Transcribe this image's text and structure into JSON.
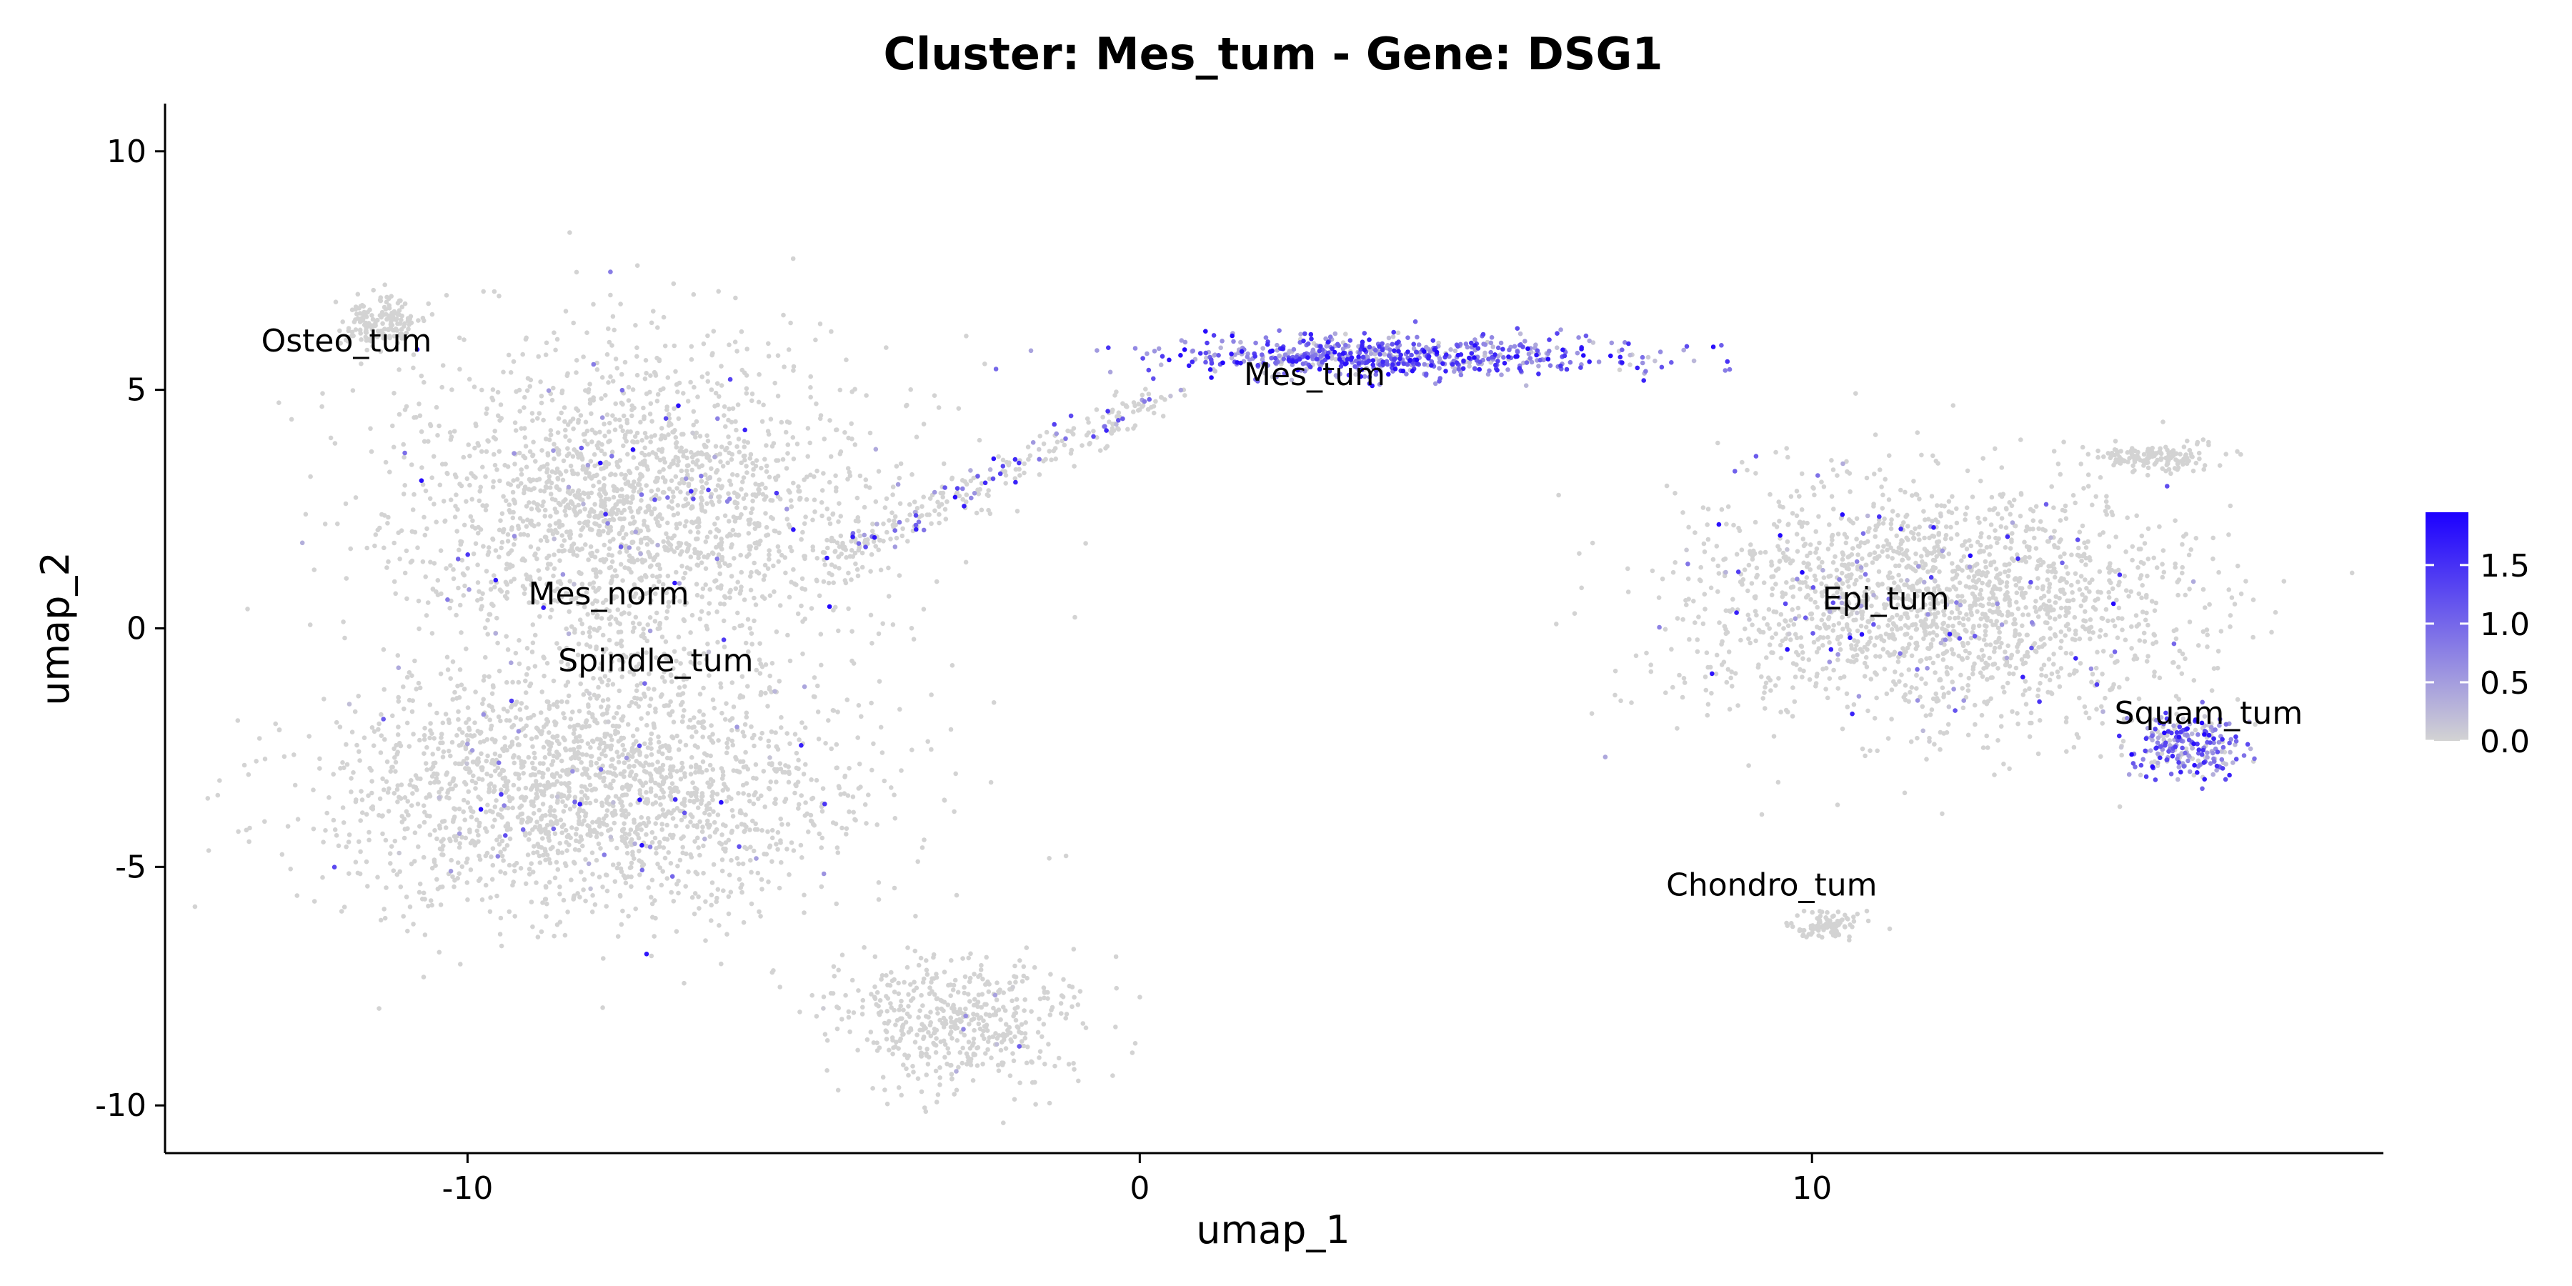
{
  "chart_data": {
    "type": "scatter",
    "title": "Cluster: Mes_tum - Gene: DSG1",
    "xlabel": "umap_1",
    "ylabel": "umap_2",
    "xlim": [
      -14.5,
      18.5
    ],
    "ylim": [
      -11,
      11
    ],
    "x_ticks": [
      {
        "value": -10,
        "label": "-10"
      },
      {
        "value": 0,
        "label": "0"
      },
      {
        "value": 10,
        "label": "10"
      }
    ],
    "y_ticks": [
      {
        "value": 10,
        "label": "10"
      },
      {
        "value": 5,
        "label": "5"
      },
      {
        "value": 0,
        "label": "0"
      },
      {
        "value": -5,
        "label": "-5"
      },
      {
        "value": -10,
        "label": "-10"
      }
    ],
    "grid": false,
    "point_color_low": "#d3d3d3",
    "point_color_high": "#1c00ff",
    "color_scale": {
      "min": 0.0,
      "max": 1.95,
      "ticks": [
        {
          "value": 0.0,
          "label": "0.0"
        },
        {
          "value": 0.5,
          "label": "0.5"
        },
        {
          "value": 1.0,
          "label": "1.0"
        },
        {
          "value": 1.5,
          "label": "1.5"
        }
      ],
      "placement": "right"
    },
    "cluster_labels": [
      {
        "text": "Osteo_tum",
        "x": -11.8,
        "y": 5.8
      },
      {
        "text": "Mes_tum",
        "x": 2.6,
        "y": 5.1
      },
      {
        "text": "Mes_norm",
        "x": -7.9,
        "y": 0.5
      },
      {
        "text": "Spindle_tum",
        "x": -7.2,
        "y": -0.9
      },
      {
        "text": "Epi_tum",
        "x": 11.1,
        "y": 0.4
      },
      {
        "text": "Squam_tum",
        "x": 15.9,
        "y": -2.0
      },
      {
        "text": "Chondro_tum",
        "x": 9.4,
        "y": -5.6
      }
    ],
    "clusters": [
      {
        "name": "Osteo_tum",
        "cx": -11.3,
        "cy": 6.4,
        "rx": 0.6,
        "ry": 0.55,
        "n": 160,
        "expr": 0.0
      },
      {
        "name": "Mes_norm",
        "cx": -7.5,
        "cy": 2.5,
        "rx": 3.6,
        "ry": 3.4,
        "n": 2100,
        "expr": 0.02
      },
      {
        "name": "Spindle_tum",
        "cx": -8.2,
        "cy": -3.4,
        "rx": 4.0,
        "ry": 2.6,
        "n": 2000,
        "expr": 0.02
      },
      {
        "name": "Spindle_tum",
        "cx": -2.7,
        "cy": -8.2,
        "rx": 1.9,
        "ry": 1.4,
        "n": 500,
        "expr": 0.01
      },
      {
        "name": "Mes_tum",
        "cx": 3.8,
        "cy": 5.7,
        "rx": 3.4,
        "ry": 0.45,
        "n": 650,
        "expr": 0.7
      },
      {
        "name": "Epi_tum",
        "cx": 11.8,
        "cy": 0.6,
        "rx": 3.7,
        "ry": 2.6,
        "n": 1900,
        "expr": 0.04
      },
      {
        "name": "Squam_tum",
        "cx": 15.6,
        "cy": -2.5,
        "rx": 0.85,
        "ry": 0.65,
        "n": 240,
        "expr": 0.55
      },
      {
        "name": "Epi_tum",
        "cx": 15.1,
        "cy": 3.6,
        "rx": 0.9,
        "ry": 0.3,
        "n": 150,
        "expr": 0.0
      },
      {
        "name": "Chondro_tum",
        "cx": 10.2,
        "cy": -6.2,
        "rx": 0.6,
        "ry": 0.3,
        "n": 90,
        "expr": 0.0
      }
    ],
    "bridge": {
      "from": [
        -4.5,
        1.5
      ],
      "to": [
        0.3,
        4.9
      ],
      "n": 260,
      "expr": 0.15
    }
  }
}
